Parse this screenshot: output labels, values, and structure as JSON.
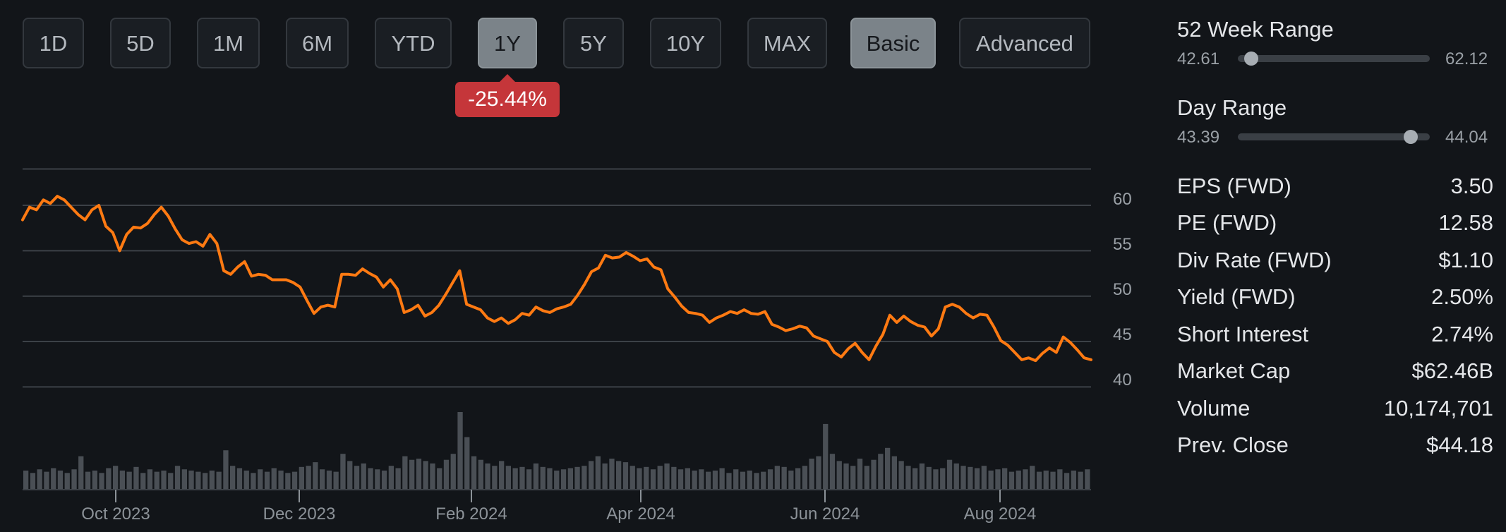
{
  "toolbar": {
    "ranges": [
      {
        "label": "1D",
        "active": false
      },
      {
        "label": "5D",
        "active": false
      },
      {
        "label": "1M",
        "active": false
      },
      {
        "label": "6M",
        "active": false
      },
      {
        "label": "YTD",
        "active": false
      },
      {
        "label": "1Y",
        "active": true
      },
      {
        "label": "5Y",
        "active": false
      },
      {
        "label": "10Y",
        "active": false
      },
      {
        "label": "MAX",
        "active": false
      },
      {
        "label": "Basic",
        "active": true
      },
      {
        "label": "Advanced",
        "active": false
      }
    ],
    "change": "-25.44%"
  },
  "colors": {
    "background": "#121519",
    "line": "#ff7a12",
    "volume": "#4a4f55",
    "gridline": "#3c4147",
    "badge": "#c5363a",
    "active_button": "#7b8389"
  },
  "chart_data": {
    "type": "line",
    "x_axis_labels": [
      "Oct 2023",
      "Dec 2023",
      "Feb 2024",
      "Apr 2024",
      "Jun 2024",
      "Aug 2024"
    ],
    "y_ticks": [
      40,
      45,
      50,
      55,
      60
    ],
    "y_range": [
      40,
      64
    ],
    "grid": true,
    "series": [
      {
        "values": [
          58.4,
          59.8,
          59.5,
          60.6,
          60.2,
          61.0,
          60.6,
          59.8,
          59.0,
          58.4,
          59.5,
          60.0,
          57.7,
          57.0,
          55.0,
          56.8,
          57.6,
          57.5,
          58.0,
          59.0,
          59.8,
          58.8,
          57.4,
          56.2,
          55.8,
          56.0,
          55.5,
          56.8,
          55.8,
          52.8,
          52.4,
          53.2,
          53.8,
          52.2,
          52.4,
          52.3,
          51.8,
          51.8,
          51.8,
          51.5,
          51.0,
          49.5,
          48.1,
          48.8,
          49.0,
          48.8,
          52.4,
          52.4,
          52.3,
          53.0,
          52.5,
          52.1,
          51.0,
          51.8,
          50.8,
          48.2,
          48.5,
          49.0,
          47.8,
          48.2,
          49.0,
          50.2,
          51.5,
          52.8,
          49.1,
          48.8,
          48.5,
          47.6,
          47.2,
          47.6,
          47.0,
          47.4,
          48.1,
          47.9,
          48.8,
          48.4,
          48.2,
          48.6,
          48.8,
          49.1,
          50.1,
          51.3,
          52.7,
          53.1,
          54.5,
          54.2,
          54.3,
          54.8,
          54.4,
          53.9,
          54.1,
          53.2,
          52.9,
          50.8,
          49.9,
          48.9,
          48.2,
          48.1,
          47.9,
          47.1,
          47.6,
          47.9,
          48.3,
          48.1,
          48.5,
          48.1,
          48.0,
          48.3,
          46.9,
          46.6,
          46.2,
          46.4,
          46.7,
          46.5,
          45.6,
          45.3,
          45.0,
          43.8,
          43.3,
          44.2,
          44.8,
          43.8,
          43.0,
          44.5,
          45.8,
          47.9,
          47.1,
          47.8,
          47.2,
          46.8,
          46.6,
          45.6,
          46.4,
          48.8,
          49.1,
          48.8,
          48.1,
          47.6,
          48.0,
          47.9,
          46.6,
          45.1,
          44.6,
          43.8,
          43.0,
          43.2,
          42.9,
          43.7,
          44.3,
          43.8,
          45.5,
          44.9,
          44.1,
          43.2,
          43.0
        ]
      }
    ],
    "volume": {
      "values": [
        0.16,
        0.14,
        0.17,
        0.15,
        0.18,
        0.16,
        0.14,
        0.17,
        0.28,
        0.15,
        0.16,
        0.14,
        0.18,
        0.2,
        0.16,
        0.15,
        0.19,
        0.14,
        0.17,
        0.15,
        0.16,
        0.14,
        0.2,
        0.17,
        0.16,
        0.15,
        0.14,
        0.16,
        0.15,
        0.33,
        0.2,
        0.18,
        0.16,
        0.14,
        0.17,
        0.15,
        0.18,
        0.16,
        0.14,
        0.15,
        0.19,
        0.2,
        0.23,
        0.17,
        0.16,
        0.15,
        0.3,
        0.24,
        0.2,
        0.22,
        0.18,
        0.17,
        0.16,
        0.2,
        0.18,
        0.28,
        0.25,
        0.26,
        0.24,
        0.22,
        0.18,
        0.25,
        0.3,
        0.65,
        0.44,
        0.28,
        0.25,
        0.22,
        0.2,
        0.24,
        0.2,
        0.18,
        0.19,
        0.17,
        0.22,
        0.19,
        0.18,
        0.16,
        0.17,
        0.18,
        0.19,
        0.2,
        0.24,
        0.28,
        0.22,
        0.26,
        0.24,
        0.23,
        0.2,
        0.18,
        0.19,
        0.17,
        0.2,
        0.22,
        0.19,
        0.17,
        0.18,
        0.16,
        0.17,
        0.15,
        0.16,
        0.18,
        0.14,
        0.17,
        0.15,
        0.16,
        0.14,
        0.15,
        0.17,
        0.2,
        0.19,
        0.16,
        0.18,
        0.2,
        0.26,
        0.28,
        0.55,
        0.3,
        0.24,
        0.22,
        0.2,
        0.26,
        0.2,
        0.25,
        0.3,
        0.35,
        0.28,
        0.24,
        0.2,
        0.18,
        0.22,
        0.19,
        0.17,
        0.18,
        0.25,
        0.22,
        0.2,
        0.19,
        0.18,
        0.2,
        0.16,
        0.17,
        0.18,
        0.15,
        0.16,
        0.17,
        0.2,
        0.15,
        0.16,
        0.15,
        0.17,
        0.14,
        0.16,
        0.15,
        0.17
      ]
    }
  },
  "stats": {
    "week52": {
      "title": "52 Week Range",
      "low": "42.61",
      "high": "62.12",
      "position": 0.07
    },
    "day": {
      "title": "Day Range",
      "low": "43.39",
      "high": "44.04",
      "position": 0.9
    },
    "rows": [
      {
        "label": "EPS (FWD)",
        "value": "3.50"
      },
      {
        "label": "PE (FWD)",
        "value": "12.58"
      },
      {
        "label": "Div Rate (FWD)",
        "value": "$1.10"
      },
      {
        "label": "Yield (FWD)",
        "value": "2.50%"
      },
      {
        "label": "Short Interest",
        "value": "2.74%"
      },
      {
        "label": "Market Cap",
        "value": "$62.46B"
      },
      {
        "label": "Volume",
        "value": "10,174,701"
      },
      {
        "label": "Prev. Close",
        "value": "$44.18"
      }
    ]
  }
}
